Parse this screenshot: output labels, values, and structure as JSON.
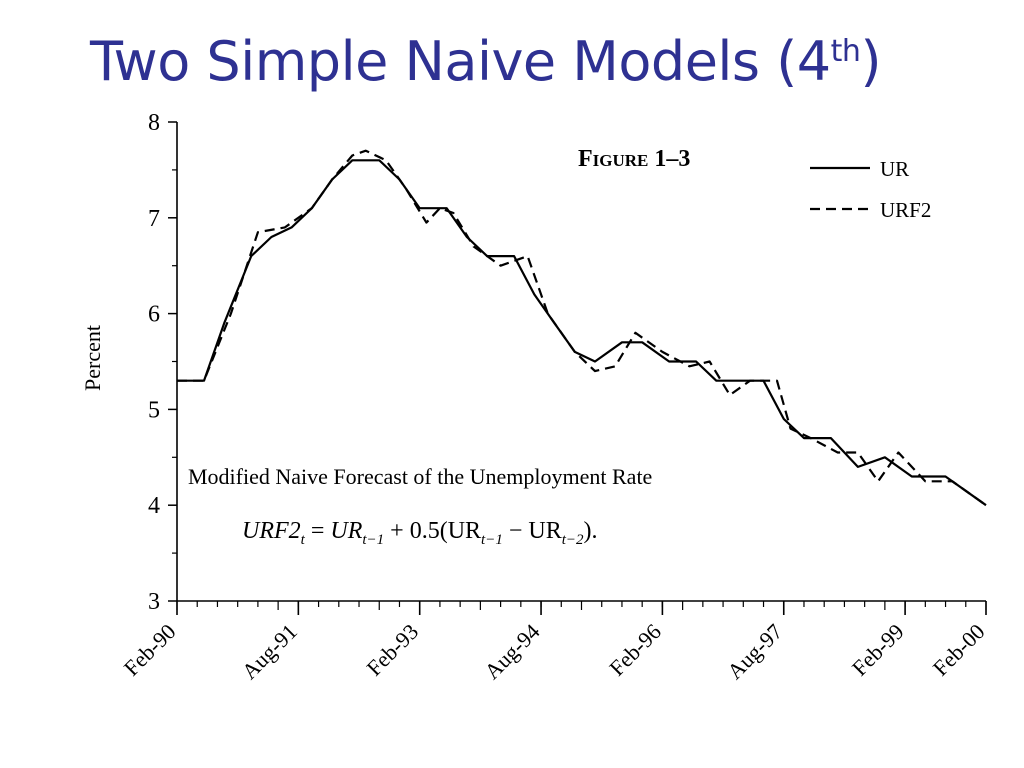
{
  "slide": {
    "title_main": "Two Simple Naive Models (4",
    "title_sup": "th",
    "title_end": ")"
  },
  "chart_data": {
    "type": "line",
    "figure_label": "Figure 1–3",
    "ylabel": "Percent",
    "xlabel": "",
    "ylim": [
      3,
      8
    ],
    "yticks": [
      "3",
      "4",
      "5",
      "6",
      "7",
      "8"
    ],
    "x_range": [
      "Feb-90",
      "Feb-00"
    ],
    "xticks": [
      "Feb-90",
      "Aug-91",
      "Feb-93",
      "Aug-94",
      "Feb-96",
      "Aug-97",
      "Feb-99",
      "Feb-00"
    ],
    "legend_position": "top-right",
    "annotation": {
      "line1": "Modified Naive Forecast of the Unemployment Rate",
      "formula": "URF2t = URt−1 + 0.5(URt−1 − URt−2)."
    },
    "series": [
      {
        "name": "UR",
        "style": "solid",
        "points": [
          [
            "Feb-90",
            5.3
          ],
          [
            "Jun-90",
            5.3
          ],
          [
            "Sep-90",
            5.9
          ],
          [
            "Jan-91",
            6.6
          ],
          [
            "Apr-91",
            6.8
          ],
          [
            "Jul-91",
            6.9
          ],
          [
            "Oct-91",
            7.1
          ],
          [
            "Jan-92",
            7.4
          ],
          [
            "Apr-92",
            7.6
          ],
          [
            "Aug-92",
            7.6
          ],
          [
            "Nov-92",
            7.4
          ],
          [
            "Feb-93",
            7.1
          ],
          [
            "Jun-93",
            7.1
          ],
          [
            "Sep-93",
            6.8
          ],
          [
            "Dec-93",
            6.6
          ],
          [
            "Apr-94",
            6.6
          ],
          [
            "Jul-94",
            6.2
          ],
          [
            "Oct-94",
            5.9
          ],
          [
            "Jan-95",
            5.6
          ],
          [
            "Apr-95",
            5.5
          ],
          [
            "Aug-95",
            5.7
          ],
          [
            "Nov-95",
            5.7
          ],
          [
            "Mar-96",
            5.5
          ],
          [
            "Jul-96",
            5.5
          ],
          [
            "Oct-96",
            5.3
          ],
          [
            "Jan-97",
            5.3
          ],
          [
            "May-97",
            5.3
          ],
          [
            "Aug-97",
            4.9
          ],
          [
            "Nov-97",
            4.7
          ],
          [
            "Mar-98",
            4.7
          ],
          [
            "Jul-98",
            4.4
          ],
          [
            "Nov-98",
            4.5
          ],
          [
            "Mar-99",
            4.3
          ],
          [
            "Aug-99",
            4.3
          ],
          [
            "Feb-00",
            4.0
          ]
        ]
      },
      {
        "name": "URF2",
        "style": "dashed",
        "points": [
          [
            "Feb-90",
            5.3
          ],
          [
            "Jun-90",
            5.3
          ],
          [
            "Oct-90",
            6.0
          ],
          [
            "Feb-91",
            6.85
          ],
          [
            "Jun-91",
            6.9
          ],
          [
            "Oct-91",
            7.1
          ],
          [
            "Jan-92",
            7.4
          ],
          [
            "Apr-92",
            7.65
          ],
          [
            "Jun-92",
            7.7
          ],
          [
            "Sep-92",
            7.6
          ],
          [
            "Dec-92",
            7.3
          ],
          [
            "Mar-93",
            6.95
          ],
          [
            "May-93",
            7.1
          ],
          [
            "Jul-93",
            7.05
          ],
          [
            "Oct-93",
            6.7
          ],
          [
            "Feb-94",
            6.5
          ],
          [
            "Jun-94",
            6.6
          ],
          [
            "Sep-94",
            6.0
          ],
          [
            "Jan-95",
            5.6
          ],
          [
            "Apr-95",
            5.4
          ],
          [
            "Jul-95",
            5.45
          ],
          [
            "Oct-95",
            5.8
          ],
          [
            "Feb-96",
            5.6
          ],
          [
            "Jun-96",
            5.45
          ],
          [
            "Sep-96",
            5.5
          ],
          [
            "Dec-96",
            5.15
          ],
          [
            "Mar-97",
            5.3
          ],
          [
            "Jul-97",
            5.3
          ],
          [
            "Sep-97",
            4.8
          ],
          [
            "Dec-97",
            4.7
          ],
          [
            "Apr-98",
            4.55
          ],
          [
            "Jul-98",
            4.55
          ],
          [
            "Oct-98",
            4.25
          ],
          [
            "Jan-99",
            4.55
          ],
          [
            "May-99",
            4.25
          ],
          [
            "Sep-99",
            4.25
          ],
          [
            "Feb-00",
            4.0
          ]
        ]
      }
    ]
  }
}
